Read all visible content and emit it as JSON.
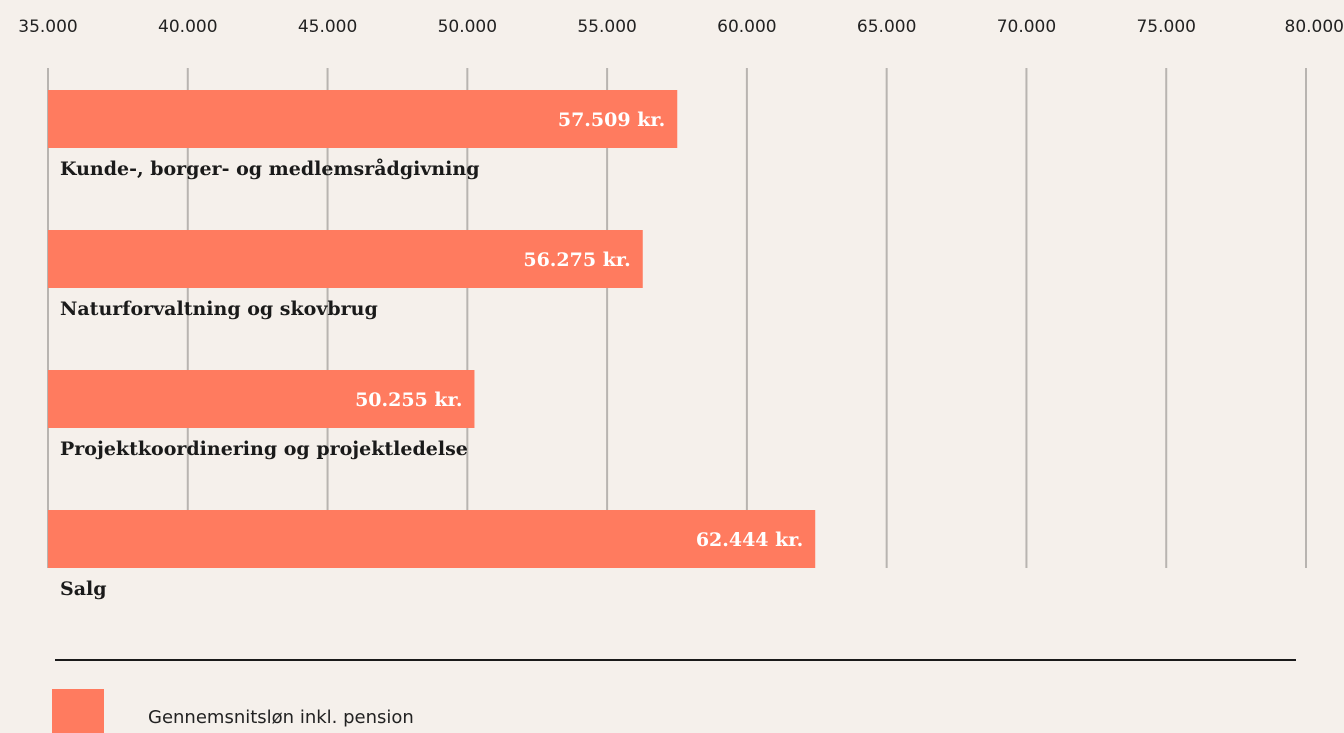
{
  "chart_data": {
    "type": "barh",
    "categories": [
      "Kunde-, borger- og medlemsrådgivning",
      "Naturforvaltning og skovbrug",
      "Projektkoordinering og projektledelse",
      "Salg"
    ],
    "series": [
      {
        "name": "Gennemsnitsløn inkl. pension",
        "color": "#ff7b5f",
        "values": [
          57509,
          56275,
          50255,
          62444
        ],
        "value_labels": [
          "57.509 kr.",
          "56.275 kr.",
          "50.255 kr.",
          "62.444 kr."
        ]
      }
    ],
    "xlim": [
      35000,
      80000
    ],
    "xticks": [
      {
        "value": 35000,
        "label": "35.000"
      },
      {
        "value": 40000,
        "label": "40.000"
      },
      {
        "value": 45000,
        "label": "45.000"
      },
      {
        "value": 50000,
        "label": "50.000"
      },
      {
        "value": 55000,
        "label": "55.000"
      },
      {
        "value": 60000,
        "label": "60.000"
      },
      {
        "value": 65000,
        "label": "65.000"
      },
      {
        "value": 70000,
        "label": "70.000"
      },
      {
        "value": 75000,
        "label": "75.000"
      },
      {
        "value": 80000,
        "label": "80.000"
      }
    ],
    "grid": true,
    "legend": "bottom"
  }
}
